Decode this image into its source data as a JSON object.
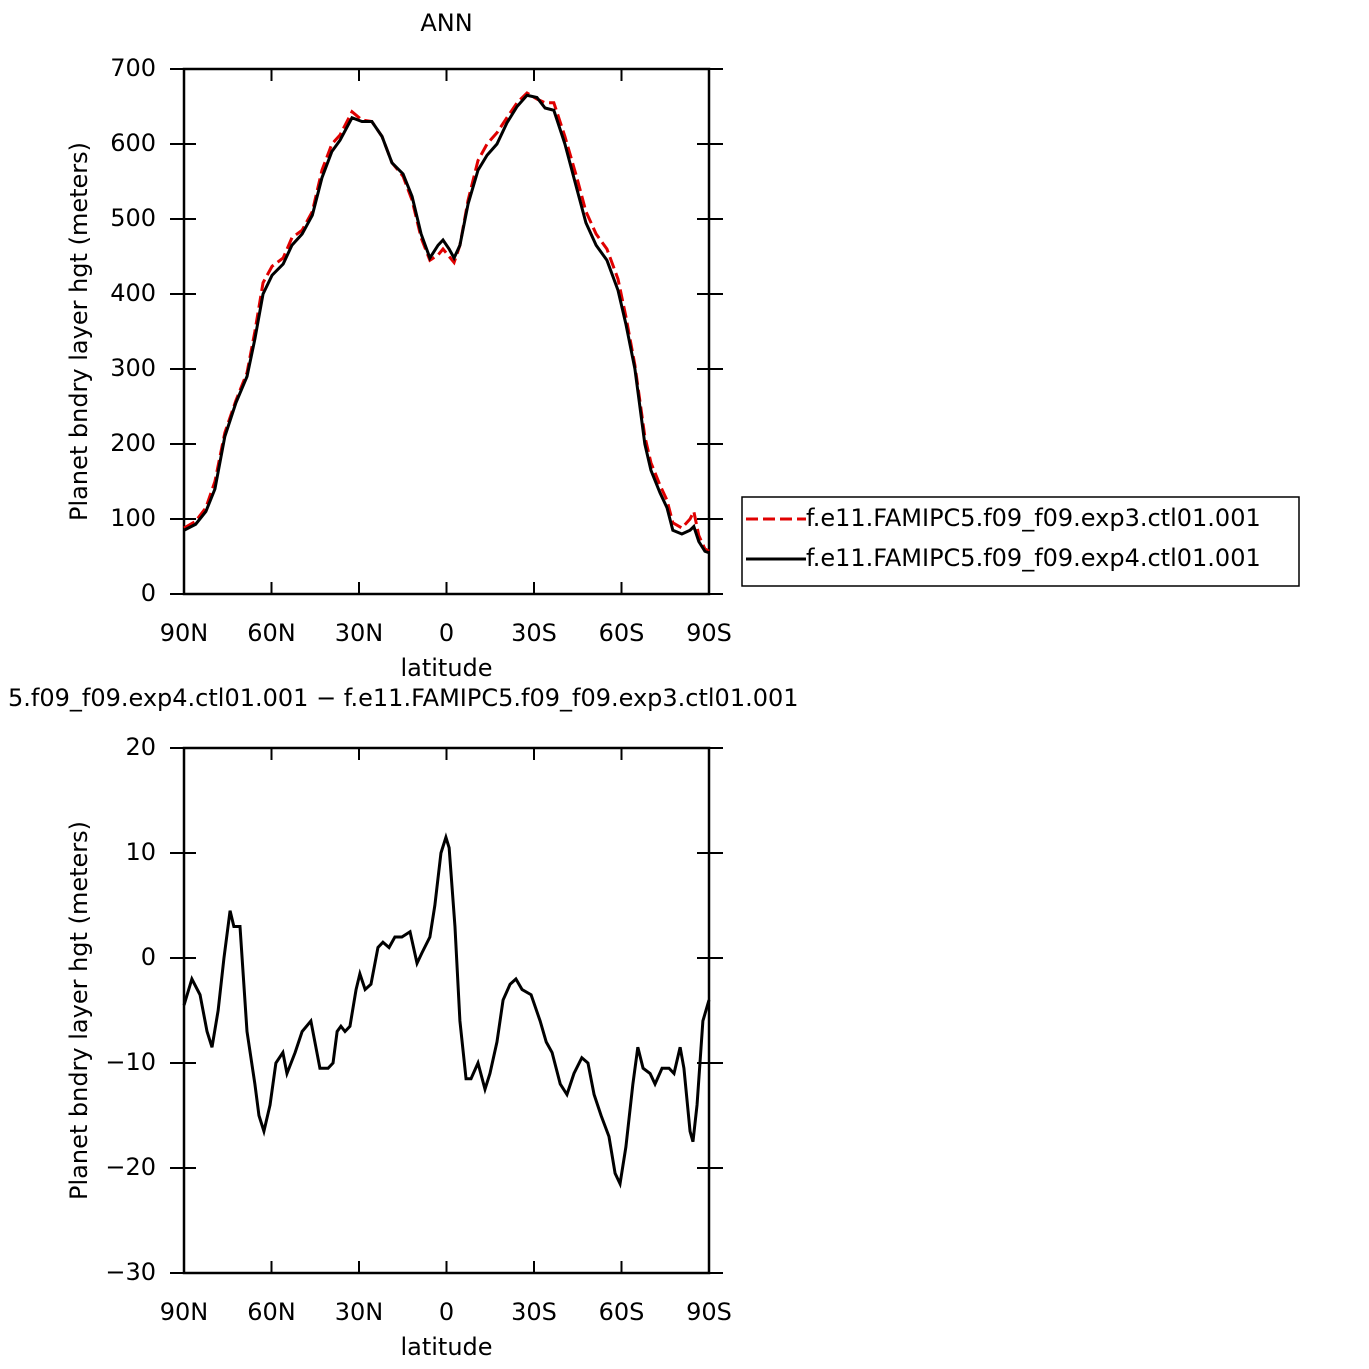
{
  "chart_data": [
    {
      "type": "line",
      "title": "ANN",
      "xlabel": "latitude",
      "ylabel": "Planet bndry layer hgt (meters)",
      "xlim": [
        90,
        -90
      ],
      "xticks": [
        {
          "value": 90,
          "label": "90N"
        },
        {
          "value": 60,
          "label": "60N"
        },
        {
          "value": 30,
          "label": "30N"
        },
        0,
        {
          "value": -30,
          "label": "30S"
        },
        {
          "value": -60,
          "label": "60S"
        },
        {
          "value": -90,
          "label": "90S"
        }
      ],
      "ylim": [
        0,
        700
      ],
      "yticks": [
        0,
        100,
        200,
        300,
        400,
        500,
        600,
        700
      ],
      "legend": "right",
      "x": [
        90,
        86,
        82.5,
        79.4,
        76,
        72.2,
        68.4,
        65.7,
        62.9,
        59.8,
        56,
        53,
        49.5,
        46,
        42.7,
        39.3,
        36.5,
        32.4,
        29,
        25.6,
        22.1,
        18.7,
        14.9,
        11.8,
        8.7,
        5.7,
        2.9,
        1.2,
        -0.9,
        -2.6,
        -4.6,
        -7.4,
        -10.8,
        -13.9,
        -17.3,
        -20.7,
        -24.2,
        -27.6,
        -31,
        -33.8,
        -36.8,
        -40.6,
        -44.7,
        -47.8,
        -51.3,
        -55,
        -58.8,
        -61.5,
        -64.6,
        -68,
        -70.1,
        -73.2,
        -75.6,
        -77.6,
        -80.7,
        -83.5,
        -84.8,
        -86.5,
        -88.6,
        -90
      ],
      "series": [
        {
          "name": "f.e11.FAMIPC5.f09_f09.exp3.ctl01.001",
          "color": "#e00000",
          "dash": true,
          "values": [
            88,
            97,
            115,
            150,
            215,
            258,
            295,
            350,
            415,
            437,
            448,
            475,
            485,
            510,
            565,
            600,
            612,
            643,
            632,
            630,
            610,
            575,
            557,
            525,
            475,
            445,
            452,
            460,
            450,
            442,
            465,
            525,
            578,
            600,
            615,
            635,
            655,
            668,
            660,
            655,
            655,
            610,
            555,
            510,
            480,
            460,
            420,
            370,
            305,
            210,
            175,
            145,
            125,
            95,
            88,
            100,
            110,
            78,
            60,
            57
          ]
        },
        {
          "name": "f.e11.FAMIPC5.f09_f09.exp4.ctl01.001",
          "color": "#000000",
          "dash": false,
          "values": [
            85,
            93,
            110,
            140,
            210,
            255,
            290,
            340,
            400,
            425,
            440,
            465,
            480,
            505,
            555,
            590,
            605,
            635,
            630,
            630,
            610,
            575,
            560,
            530,
            480,
            448,
            465,
            472,
            460,
            448,
            465,
            520,
            565,
            585,
            600,
            628,
            650,
            665,
            662,
            648,
            645,
            600,
            540,
            495,
            465,
            445,
            405,
            360,
            300,
            200,
            165,
            135,
            115,
            85,
            80,
            85,
            90,
            70,
            57,
            55
          ]
        }
      ]
    },
    {
      "type": "line",
      "title": "5.f09_f09.exp4.ctl01.001 − f.e11.FAMIPC5.f09_f09.exp3.ctl01.001",
      "xlabel": "latitude",
      "ylabel": "Planet bndry layer hgt (meters)",
      "xlim": [
        90,
        -90
      ],
      "xticks": [
        {
          "value": 90,
          "label": "90N"
        },
        {
          "value": 60,
          "label": "60N"
        },
        {
          "value": 30,
          "label": "30N"
        },
        0,
        {
          "value": -30,
          "label": "30S"
        },
        {
          "value": -60,
          "label": "60S"
        },
        {
          "value": -90,
          "label": "90S"
        }
      ],
      "ylim": [
        -30,
        20
      ],
      "yticks": [
        {
          "value": -30,
          "label": "−30"
        },
        {
          "value": -20,
          "label": "−20"
        },
        {
          "value": -10,
          "label": "−10"
        },
        0,
        10,
        20
      ],
      "x": [
        90,
        87.3,
        84.5,
        82.1,
        80.4,
        78.3,
        76.3,
        74.2,
        72.9,
        70.8,
        68.4,
        65.7,
        64.3,
        62.6,
        60.5,
        58.5,
        56.1,
        54.7,
        51.9,
        49.5,
        46.5,
        43.4,
        40.6,
        38.9,
        37.5,
        36.2,
        34.8,
        33.1,
        31,
        29.7,
        27.9,
        25.9,
        23.5,
        21.8,
        19.7,
        17.7,
        15.3,
        12.5,
        10.1,
        8.4,
        5.7,
        4,
        1.9,
        0.2,
        -0.9,
        -2.9,
        -4.6,
        -6.7,
        -8.4,
        -10.8,
        -13.2,
        -14.9,
        -17.3,
        -19.4,
        -21.8,
        -23.8,
        -25.9,
        -29,
        -32.1,
        -34.2,
        -36.2,
        -39,
        -41.3,
        -43.7,
        -46.4,
        -48.5,
        -50.6,
        -53,
        -55.7,
        -57.8,
        -59.5,
        -61.5,
        -63.9,
        -65.6,
        -67.4,
        -69.8,
        -71.5,
        -73.9,
        -76.3,
        -78,
        -80.1,
        -81.4,
        -83.5,
        -84.5,
        -85.9,
        -87.9,
        -90
      ],
      "series": [
        {
          "color": "#000000",
          "dash": false,
          "values": [
            -4.5,
            -2,
            -3.5,
            -7,
            -8.5,
            -5,
            0,
            4.5,
            3,
            3,
            -7,
            -12,
            -15,
            -16.5,
            -14,
            -10,
            -9,
            -11,
            -9,
            -7,
            -6,
            -10.5,
            -10.5,
            -10,
            -7,
            -6.5,
            -7,
            -6.5,
            -3,
            -1.5,
            -3,
            -2.5,
            1,
            1.5,
            1,
            2,
            2,
            2.5,
            -0.5,
            0.5,
            2,
            5,
            10,
            11.5,
            10.5,
            3,
            -6,
            -11.5,
            -11.5,
            -10,
            -12.5,
            -11,
            -8,
            -4,
            -2.5,
            -2,
            -3,
            -3.5,
            -6,
            -8,
            -9,
            -12,
            -13,
            -11,
            -9.5,
            -10,
            -13,
            -15,
            -17,
            -20.5,
            -21.5,
            -18,
            -12,
            -8.5,
            -10.5,
            -11,
            -12,
            -10.5,
            -10.5,
            -11,
            -8.5,
            -10.5,
            -16.5,
            -17.5,
            -14,
            -6,
            -4
          ]
        }
      ]
    }
  ]
}
